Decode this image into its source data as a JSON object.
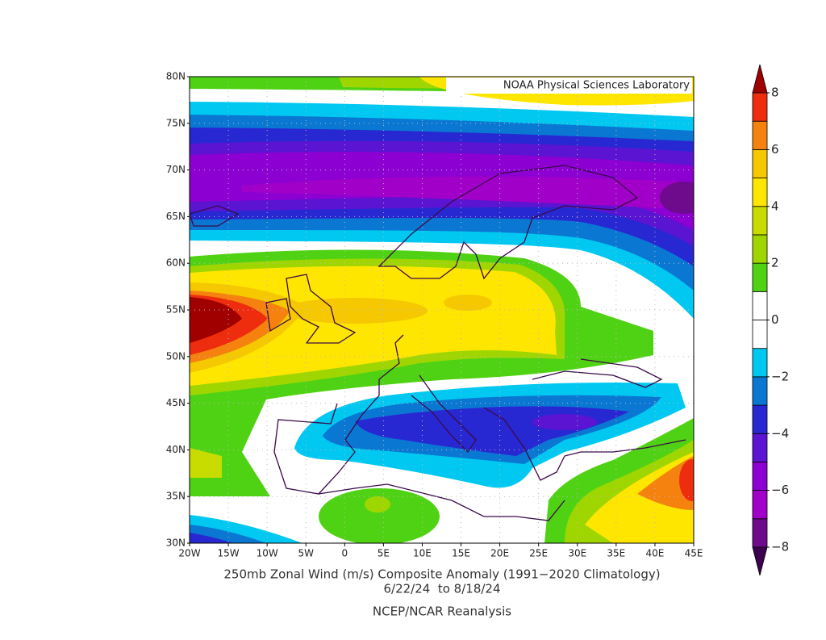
{
  "map": {
    "credit": "NOAA Physical Sciences Laboratory",
    "title": "250mb Zonal Wind (m/s) Composite Anomaly (1991−2020 Climatology)",
    "dates": "6/22/24  to 8/18/24",
    "source": "NCEP/NCAR Reanalysis",
    "lonlim": [
      -20,
      45
    ],
    "latlim": [
      30,
      80
    ],
    "lon_ticks": [
      {
        "value": -20,
        "label": "20W"
      },
      {
        "value": -15,
        "label": "15W"
      },
      {
        "value": -10,
        "label": "10W"
      },
      {
        "value": -5,
        "label": "5W"
      },
      0,
      {
        "value": 5,
        "label": "5E"
      },
      {
        "value": 10,
        "label": "10E"
      },
      {
        "value": 15,
        "label": "15E"
      },
      {
        "value": 20,
        "label": "20E"
      },
      {
        "value": 25,
        "label": "25E"
      },
      {
        "value": 30,
        "label": "30E"
      },
      {
        "value": 35,
        "label": "35E"
      },
      {
        "value": 40,
        "label": "40E"
      },
      {
        "value": 45,
        "label": "45E"
      }
    ],
    "lat_ticks": [
      {
        "value": 30,
        "label": "30N"
      },
      {
        "value": 35,
        "label": "35N"
      },
      {
        "value": 40,
        "label": "40N"
      },
      {
        "value": 45,
        "label": "45N"
      },
      {
        "value": 50,
        "label": "50N"
      },
      {
        "value": 55,
        "label": "55N"
      },
      {
        "value": 60,
        "label": "60N"
      },
      {
        "value": 65,
        "label": "65N"
      },
      {
        "value": 70,
        "label": "70N"
      },
      {
        "value": 75,
        "label": "75N"
      },
      {
        "value": 80,
        "label": "80N"
      }
    ],
    "grid": true,
    "colorbar": {
      "lim": [
        -8,
        8
      ],
      "ticks": [
        {
          "value": -8,
          "label": "−8"
        },
        {
          "value": -6,
          "label": "−6"
        },
        {
          "value": -4,
          "label": "−4"
        },
        {
          "value": -2,
          "label": "−2"
        },
        0,
        2,
        4,
        6,
        8
      ],
      "under_color": "#3c0050",
      "over_color": "#a00000",
      "colors": [
        "#6e0a8c",
        "#a000c8",
        "#8c00d2",
        "#5a14d2",
        "#2828d2",
        "#0a78d2",
        "#00c8f0",
        "#ffffff",
        "#ffffff",
        "#50d214",
        "#a0d600",
        "#c8dc00",
        "#ffe600",
        "#f5c800",
        "#f5820f",
        "#ee2d0f"
      ]
    }
  }
}
